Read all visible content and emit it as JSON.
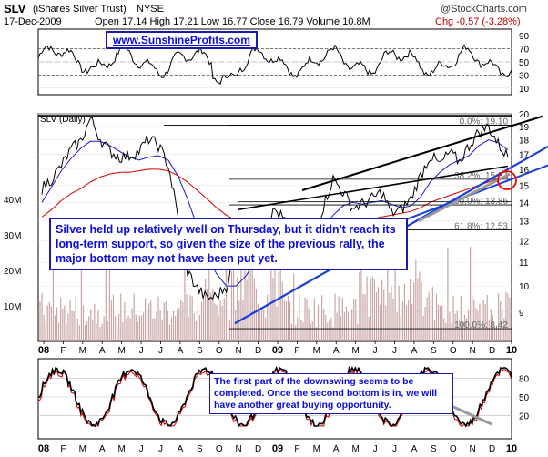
{
  "header": {
    "ticker": "SLV",
    "name": "(iShares Silver Trust)",
    "exchange": "NYSE",
    "date": "17-Dec-2009",
    "ohlc": "Open 17.14  High 17.21  Low 16.77  Close 16.79  Volume 10.8M",
    "chg": "Chg -0.57 (-3.28%)",
    "watermark": "@StockCharts.com"
  },
  "website": "www.SunshineProfits.com",
  "callout_main": "Silver held up relatively well on Thursday, but it didn't reach its long-term support, so given the size of the previous rally, the major bottom may not have been put yet.",
  "callout_stoch": "The first part of the downswing seems to be completed. Once the second bottom is in, we will have another great buying opportunity.",
  "colors": {
    "price": "#000000",
    "ma50": "#1a1acc",
    "ma200": "#dd0000",
    "trendline": "#1a3fd6",
    "volume": "#c9a6a6",
    "callout_border": "#1a1aa6",
    "callout_text": "#0b0bdc",
    "circle": "#ff0000"
  },
  "chart_data": [
    {
      "type": "line",
      "panel": "rsi",
      "ylim": [
        0,
        100
      ],
      "ticks": [
        "90",
        "70",
        "50",
        "30",
        "10"
      ],
      "tick_values": [
        90,
        70,
        50,
        30,
        10
      ],
      "bands": [
        30,
        70
      ]
    },
    {
      "type": "line",
      "panel": "price",
      "label": "SLV (Daily)",
      "ylim": [
        8,
        20
      ],
      "scale": "log",
      "ticks": [
        "20",
        "19",
        "18",
        "17",
        "16",
        "15",
        "14",
        "13",
        "12",
        "11",
        "10",
        "9"
      ],
      "tick_values": [
        20,
        19,
        18,
        17,
        16,
        15,
        14,
        13,
        12,
        11,
        10,
        9
      ],
      "volume_ticks": [
        "40M",
        "30M",
        "20M",
        "10M"
      ],
      "volume_tick_values": [
        40,
        30,
        20,
        10
      ],
      "fib_levels": [
        {
          "label": "0.0%: 19.10",
          "value": 19.1
        },
        {
          "label": "38.2%: 15.37",
          "value": 15.37
        },
        {
          "label": "50.0%: 13.86",
          "value": 13.86
        },
        {
          "label": "61.8%: 12.53",
          "value": 12.53
        },
        {
          "label": "100.0%: 8.42",
          "value": 8.42
        }
      ],
      "x_labels": [
        "08",
        "F",
        "M",
        "A",
        "M",
        "J",
        "J",
        "A",
        "S",
        "O",
        "N",
        "D",
        "09",
        "F",
        "M",
        "A",
        "M",
        "J",
        "J",
        "A",
        "S",
        "O",
        "N",
        "D",
        "10"
      ],
      "series": [
        {
          "values": [
            14.8,
            15.4,
            16.2,
            17.3,
            17.9,
            19.6,
            18.1,
            17.2,
            16.8,
            16.9,
            17.2,
            18.1,
            17.6,
            16.3,
            13.2,
            10.6,
            9.9,
            9.5,
            9.6,
            10.0,
            11.2,
            11.6,
            12.3,
            12.7,
            13.6,
            13.0,
            12.5,
            12.1,
            12.0,
            13.8,
            15.4,
            14.6,
            13.7,
            13.9,
            14.2,
            14.6,
            13.4,
            13.6,
            14.2,
            15.6,
            16.9,
            16.3,
            17.1,
            16.5,
            17.6,
            18.6,
            19.0,
            17.7,
            16.8
          ]
        },
        {
          "values": [
            14.0,
            14.9,
            15.9,
            16.7,
            17.4,
            17.9,
            17.9,
            17.6,
            17.2,
            16.8,
            16.6,
            16.8,
            16.9,
            16.6,
            15.6,
            14.2,
            12.7,
            11.3,
            10.5,
            10.0,
            10.0,
            10.4,
            11.1,
            11.8,
            12.5,
            12.8,
            12.8,
            12.6,
            12.4,
            12.6,
            13.3,
            13.8,
            14.0,
            13.9,
            14.0,
            14.1,
            13.9,
            13.7,
            13.8,
            14.3,
            15.2,
            15.8,
            16.3,
            16.6,
            16.9,
            17.6,
            18.0,
            17.8,
            17.3
          ]
        },
        {
          "values": [
            13.2,
            13.6,
            14.1,
            14.5,
            14.8,
            15.2,
            15.5,
            15.7,
            15.8,
            15.8,
            15.9,
            16.0,
            16.0,
            15.9,
            15.6,
            15.2,
            14.7,
            14.2,
            13.7,
            13.3,
            13.0,
            12.7,
            12.4,
            12.2,
            12.1,
            12.1,
            12.1,
            12.1,
            12.1,
            12.3,
            12.6,
            12.8,
            12.9,
            13.0,
            13.1,
            13.2,
            13.3,
            13.4,
            13.5,
            13.7,
            14.0,
            14.2,
            14.4,
            14.6,
            14.8,
            15.0,
            15.2,
            15.4,
            15.5
          ]
        }
      ]
    },
    {
      "type": "line",
      "panel": "stochastic",
      "ylim": [
        0,
        100
      ],
      "ticks": [
        "80",
        "50",
        "20"
      ],
      "tick_values": [
        80,
        50,
        20
      ],
      "bands": [
        20,
        80
      ],
      "x_labels": [
        "08",
        "F",
        "M",
        "A",
        "M",
        "J",
        "J",
        "A",
        "S",
        "O",
        "N",
        "D",
        "09",
        "F",
        "M",
        "A",
        "M",
        "J",
        "J",
        "A",
        "S",
        "O",
        "N",
        "D",
        "10"
      ]
    }
  ]
}
